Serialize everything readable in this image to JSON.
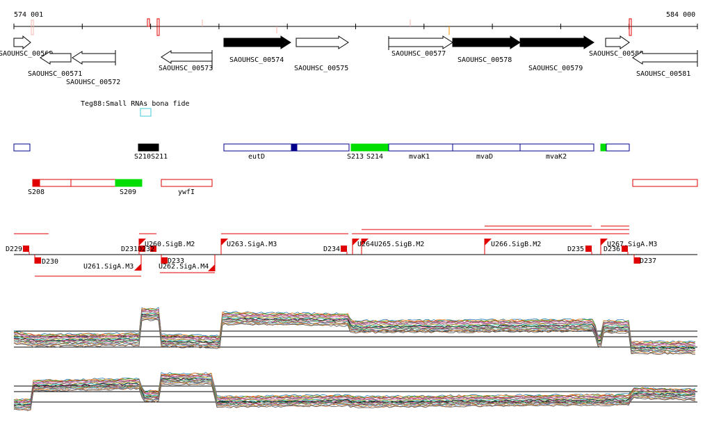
{
  "scale": {
    "start_label": "574 001",
    "end_label": "584 000"
  },
  "colors": {
    "black": "#000000",
    "red": "#e00000",
    "green": "#00dd00",
    "blue": "#00008b",
    "cyan": "#40c8d8",
    "orange": "#ff8c00",
    "salmon": "#f3b5a8"
  },
  "genes": [
    {
      "label": "SAOUHSC_00569",
      "strand": "+",
      "fill": "white"
    },
    {
      "label": "SAOUHSC_00571",
      "strand": "-",
      "fill": "white"
    },
    {
      "label": "SAOUHSC_00572",
      "strand": "-",
      "fill": "white"
    },
    {
      "label": "SAOUHSC_00573",
      "strand": "-",
      "fill": "white"
    },
    {
      "label": "SAOUHSC_00574",
      "strand": "+",
      "fill": "black"
    },
    {
      "label": "SAOUHSC_00575",
      "strand": "+",
      "fill": "white"
    },
    {
      "label": "SAOUHSC_00577",
      "strand": "+",
      "fill": "white"
    },
    {
      "label": "SAOUHSC_00578",
      "strand": "+",
      "fill": "black"
    },
    {
      "label": "SAOUHSC_00579",
      "strand": "+",
      "fill": "black"
    },
    {
      "label": "SAOUHSC_00580",
      "strand": "+",
      "fill": "white"
    },
    {
      "label": "SAOUHSC_00581",
      "strand": "-",
      "fill": "white"
    }
  ],
  "small_rna": {
    "label": "Teg88:Small RNAs bona fide"
  },
  "operon_labels": {
    "s210_s211": "S210S211",
    "eutD": "eutD",
    "s213": "S213",
    "s214": "S214",
    "mvaK1": "mvaK1",
    "mvaD": "mvaD",
    "mvaK2": "mvaK2",
    "s208": "S208",
    "s209": "S209",
    "ywfI": "ywfI"
  },
  "feature_labels": {
    "d229": "D229",
    "d230": "D230",
    "d231_232": "D231D232",
    "u260": "U260.SigB.M2",
    "u261": "U261.SigA.M3",
    "d233": "D233",
    "u262": "U262.SigA.M4",
    "u263": "U263.SigA.M3",
    "d234": "D234",
    "u264_265": "U264U265.SigB.M2",
    "u266": "U266.SigB.M2",
    "d235": "D235",
    "d236": "D236",
    "u267": "U267.SigA.M3",
    "d237": "D237"
  }
}
